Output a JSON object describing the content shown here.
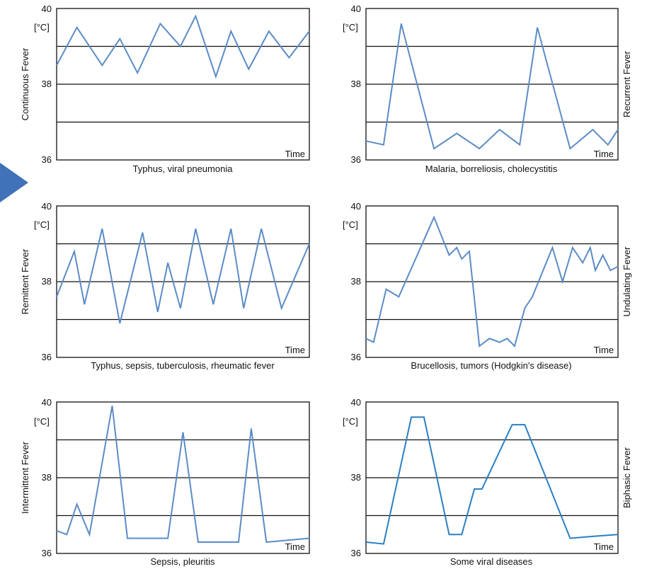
{
  "colors": {
    "series_default": "#5b8cc6",
    "series_biphasic": "#2a7fc4",
    "arrow": "#3f72b8"
  },
  "chart_data": [
    {
      "type": "line",
      "y_unit": "[°C]",
      "x_label": "Time",
      "yticks": [
        "40",
        "38",
        "36"
      ],
      "ylim": [
        36,
        40
      ],
      "reference_lines": [
        37,
        38,
        39
      ],
      "side_label": "Continuous Fever",
      "side_label_position": "left",
      "caption": "Typhus, viral pneumonia",
      "grid": true,
      "series": [
        {
          "x": [
            0,
            0.08,
            0.18,
            0.25,
            0.32,
            0.41,
            0.49,
            0.55,
            0.63,
            0.69,
            0.76,
            0.84,
            0.92,
            1.0
          ],
          "y": [
            38.5,
            39.5,
            38.5,
            39.2,
            38.3,
            39.6,
            39.0,
            39.8,
            38.2,
            39.4,
            38.4,
            39.4,
            38.7,
            39.4
          ]
        }
      ]
    },
    {
      "type": "line",
      "y_unit": "[°C]",
      "x_label": "Time",
      "yticks": [
        "40",
        "38",
        "36"
      ],
      "ylim": [
        36,
        40
      ],
      "reference_lines": [
        37,
        38,
        39
      ],
      "side_label": "Recurrent Fever",
      "side_label_position": "right",
      "caption": "Malaria, borreliosis, cholecystitis",
      "grid": true,
      "series": [
        {
          "x": [
            0,
            0.07,
            0.14,
            0.27,
            0.36,
            0.45,
            0.53,
            0.61,
            0.68,
            0.81,
            0.9,
            0.96,
            1.0
          ],
          "y": [
            36.5,
            36.4,
            39.6,
            36.3,
            36.7,
            36.3,
            36.8,
            36.4,
            39.5,
            36.3,
            36.8,
            36.4,
            36.8
          ]
        }
      ]
    },
    {
      "type": "line",
      "y_unit": "[°C]",
      "x_label": "Time",
      "yticks": [
        "40",
        "38",
        "36"
      ],
      "ylim": [
        36,
        40
      ],
      "reference_lines": [
        37,
        38,
        39
      ],
      "side_label": "Remittent Fever",
      "side_label_position": "left",
      "caption": "Typhus, sepsis, tuberculosis, rheumatic fever",
      "grid": true,
      "series": [
        {
          "x": [
            0,
            0.07,
            0.11,
            0.18,
            0.25,
            0.34,
            0.4,
            0.44,
            0.49,
            0.55,
            0.62,
            0.69,
            0.74,
            0.81,
            0.89,
            1.0
          ],
          "y": [
            37.6,
            38.8,
            37.4,
            39.4,
            36.9,
            39.3,
            37.2,
            38.5,
            37.3,
            39.4,
            37.4,
            39.4,
            37.3,
            39.4,
            37.3,
            39.0
          ]
        }
      ]
    },
    {
      "type": "line",
      "y_unit": "[°C]",
      "x_label": "Time",
      "yticks": [
        "40",
        "38",
        "36"
      ],
      "ylim": [
        36,
        40
      ],
      "reference_lines": [
        37,
        38,
        39
      ],
      "side_label": "Undulating Fever",
      "side_label_position": "right",
      "caption": "Brucellosis, tumors (Hodgkin's disease)",
      "grid": true,
      "series": [
        {
          "x": [
            0,
            0.03,
            0.08,
            0.13,
            0.21,
            0.27,
            0.33,
            0.36,
            0.38,
            0.41,
            0.45,
            0.49,
            0.53,
            0.56,
            0.59,
            0.63,
            0.66,
            0.74,
            0.78,
            0.82,
            0.86,
            0.89,
            0.91,
            0.94,
            0.97,
            1.0
          ],
          "y": [
            36.5,
            36.4,
            37.8,
            37.6,
            38.8,
            39.7,
            38.7,
            38.9,
            38.6,
            38.8,
            36.3,
            36.5,
            36.4,
            36.5,
            36.3,
            37.3,
            37.6,
            38.9,
            38.0,
            38.9,
            38.5,
            38.9,
            38.3,
            38.7,
            38.3,
            38.4
          ]
        }
      ]
    },
    {
      "type": "line",
      "y_unit": "[°C]",
      "x_label": "Time",
      "yticks": [
        "40",
        "38",
        "36"
      ],
      "ylim": [
        36,
        40
      ],
      "reference_lines": [
        37,
        38,
        39
      ],
      "side_label": "Intermittent Fever",
      "side_label_position": "left",
      "caption": "Sepsis, pleuritis",
      "grid": true,
      "series": [
        {
          "x": [
            0,
            0.04,
            0.08,
            0.13,
            0.22,
            0.28,
            0.44,
            0.5,
            0.56,
            0.72,
            0.77,
            0.83,
            1.0
          ],
          "y": [
            36.6,
            36.5,
            37.3,
            36.5,
            39.9,
            36.4,
            36.4,
            39.2,
            36.3,
            36.3,
            39.3,
            36.3,
            36.4
          ]
        }
      ]
    },
    {
      "type": "line",
      "y_unit": "[°C]",
      "x_label": "Time",
      "yticks": [
        "40",
        "38",
        "36"
      ],
      "ylim": [
        36,
        40
      ],
      "reference_lines": [
        37,
        38,
        39
      ],
      "side_label": "Biphasic Fever",
      "side_label_position": "right",
      "caption": "Some viral diseases",
      "grid": true,
      "series": [
        {
          "x": [
            0,
            0.07,
            0.18,
            0.23,
            0.33,
            0.38,
            0.43,
            0.46,
            0.58,
            0.63,
            0.81,
            0.9,
            1.0
          ],
          "y": [
            36.3,
            36.25,
            39.6,
            39.6,
            36.5,
            36.5,
            37.7,
            37.7,
            39.4,
            39.4,
            36.4,
            36.45,
            36.5
          ]
        }
      ]
    }
  ]
}
